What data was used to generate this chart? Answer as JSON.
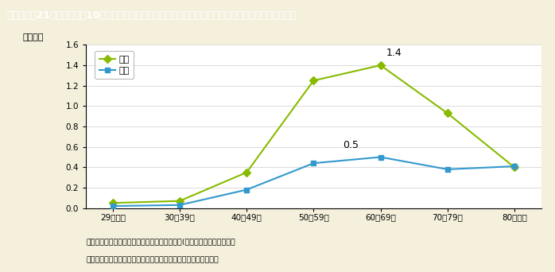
{
  "title": "第１－特－21図　要介護者10万人に対する同居の介護・看護者数：年齢階級別（男女別，平成２２年）",
  "ylabel": "（万人）",
  "categories": [
    "29歳以下",
    "30～39歳",
    "40～49歳",
    "50～59歳",
    "60～69歳",
    "70～79歳",
    "80歳以上"
  ],
  "female_values": [
    0.05,
    0.07,
    0.35,
    1.25,
    1.4,
    0.93,
    0.4
  ],
  "male_values": [
    0.02,
    0.03,
    0.18,
    0.44,
    0.5,
    0.38,
    0.41
  ],
  "female_label": "女性",
  "male_label": "男性",
  "female_color": "#88bb00",
  "male_color": "#3399cc",
  "ylim": [
    0,
    1.6
  ],
  "yticks": [
    0.0,
    0.2,
    0.4,
    0.6,
    0.8,
    1.0,
    1.2,
    1.4,
    1.6
  ],
  "female_peak_label": "1.4",
  "female_peak_idx": 4,
  "male_peak_label": "0.5",
  "male_peak_idx": 4,
  "bg_color": "#f5f0dc",
  "plot_bg_color": "#ffffff",
  "title_bg_color": "#7a6040",
  "title_text_color": "#ffffff",
  "footnote1": "（参考）１．厚生労働省「国民生活基礎調査」(平成２２年）より作成。",
  "footnote2": "　　　　２．要介護者には，要支援者及び要介護度不詳を含む。"
}
